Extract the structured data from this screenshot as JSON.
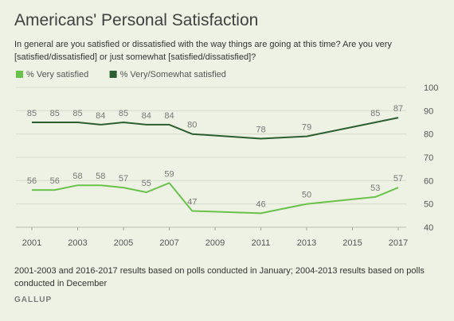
{
  "title": "Americans' Personal Satisfaction",
  "question": "In general are you satisfied or dissatisfied with the way things are going at this time? Are you very [satisfied/dissatisfied] or just somewhat [satisfied/dissatisfied]?",
  "footnote": "2001-2003 and 2016-2017 results based on polls conducted in January; 2004-2013 results based on polls conducted in December",
  "source": "GALLUP",
  "chart_data": {
    "type": "line",
    "xlim": [
      2001,
      2017
    ],
    "ylim": [
      40,
      100
    ],
    "x_ticks": [
      2001,
      2003,
      2005,
      2007,
      2009,
      2011,
      2013,
      2015,
      2017
    ],
    "y_ticks": [
      40,
      50,
      60,
      70,
      80,
      90,
      100
    ],
    "grid": "horizontal",
    "legend_position": "top-left",
    "series": [
      {
        "name": "% Very satisfied",
        "color": "#6ac24c",
        "x": [
          2001,
          2002,
          2003,
          2004,
          2005,
          2006,
          2007,
          2008,
          2011,
          2013,
          2016,
          2017
        ],
        "values": [
          56,
          56,
          58,
          58,
          57,
          55,
          59,
          47,
          46,
          50,
          53,
          57
        ]
      },
      {
        "name": "% Very/Somewhat satisfied",
        "color": "#2b5e30",
        "x": [
          2001,
          2002,
          2003,
          2004,
          2005,
          2006,
          2007,
          2008,
          2011,
          2013,
          2016,
          2017
        ],
        "values": [
          85,
          85,
          85,
          84,
          85,
          84,
          84,
          80,
          78,
          79,
          85,
          87
        ]
      }
    ]
  }
}
